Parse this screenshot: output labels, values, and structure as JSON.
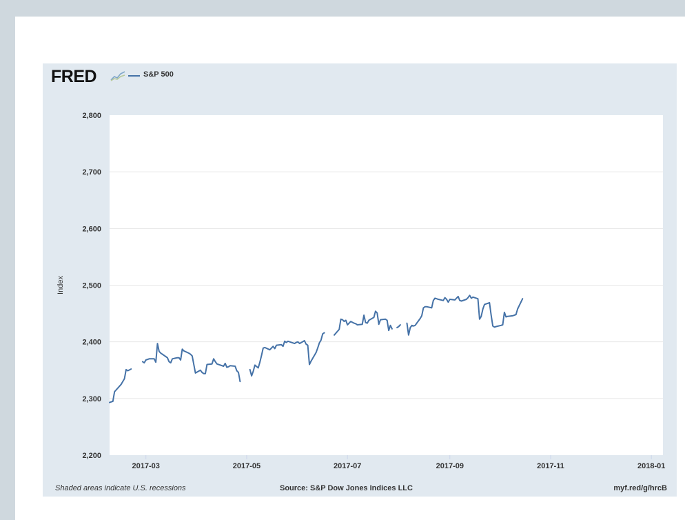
{
  "brand": {
    "logo_text": "FRED",
    "logo_icon": "fred-graph-icon"
  },
  "legend": {
    "label": "S&P 500",
    "color": "#4572a7"
  },
  "footer": {
    "note": "Shaded areas indicate U.S. recessions",
    "source": "Source: S&P Dow Jones Indices LLC",
    "link": "myf.red/g/hrcB"
  },
  "chart_data": {
    "type": "line",
    "title": "",
    "xlabel": "",
    "ylabel": "Index",
    "ylim": [
      2200,
      2800
    ],
    "xlim": [
      "2017-02-07",
      "2018-01-08"
    ],
    "y_ticks": [
      2200,
      2300,
      2400,
      2500,
      2600,
      2700,
      2800
    ],
    "y_tick_labels": [
      "2,200",
      "2,300",
      "2,400",
      "2,500",
      "2,600",
      "2,700",
      "2,800"
    ],
    "x_ticks": [
      "2017-03-01",
      "2017-05-01",
      "2017-07-01",
      "2017-09-01",
      "2017-11-01",
      "2018-01-01"
    ],
    "x_tick_labels": [
      "2017-03",
      "2017-05",
      "2017-07",
      "2017-09",
      "2017-11",
      "2018-01"
    ],
    "grid": true,
    "legend_position": "top-left",
    "series": [
      {
        "name": "S&P 500",
        "color": "#4572a7",
        "segments": [
          [
            [
              "2017-02-07",
              2293
            ],
            [
              "2017-02-09",
              2295
            ],
            [
              "2017-02-10",
              2312
            ],
            [
              "2017-02-14",
              2325
            ],
            [
              "2017-02-16",
              2335
            ],
            [
              "2017-02-17",
              2351
            ],
            [
              "2017-02-18",
              2349
            ],
            [
              "2017-02-20",
              2352
            ]
          ],
          [
            [
              "2017-02-27",
              2365
            ],
            [
              "2017-02-28",
              2363
            ],
            [
              "2017-03-01",
              2368
            ],
            [
              "2017-03-03",
              2370
            ],
            [
              "2017-03-06",
              2370
            ],
            [
              "2017-03-07",
              2364
            ],
            [
              "2017-03-08",
              2397
            ],
            [
              "2017-03-09",
              2383
            ],
            [
              "2017-03-10",
              2380
            ],
            [
              "2017-03-13",
              2374
            ],
            [
              "2017-03-14",
              2372
            ],
            [
              "2017-03-15",
              2365
            ],
            [
              "2017-03-16",
              2363
            ],
            [
              "2017-03-17",
              2370
            ],
            [
              "2017-03-20",
              2372
            ],
            [
              "2017-03-21",
              2372
            ],
            [
              "2017-03-22",
              2368
            ],
            [
              "2017-03-23",
              2387
            ],
            [
              "2017-03-24",
              2384
            ],
            [
              "2017-03-27",
              2380
            ],
            [
              "2017-03-28",
              2378
            ],
            [
              "2017-03-29",
              2375
            ],
            [
              "2017-03-31",
              2345
            ],
            [
              "2017-04-03",
              2350
            ],
            [
              "2017-04-04",
              2346
            ],
            [
              "2017-04-05",
              2344
            ],
            [
              "2017-04-06",
              2344
            ],
            [
              "2017-04-07",
              2360
            ],
            [
              "2017-04-10",
              2361
            ],
            [
              "2017-04-11",
              2370
            ],
            [
              "2017-04-12",
              2365
            ],
            [
              "2017-04-13",
              2361
            ],
            [
              "2017-04-17",
              2357
            ],
            [
              "2017-04-18",
              2362
            ],
            [
              "2017-04-19",
              2355
            ],
            [
              "2017-04-20",
              2356
            ],
            [
              "2017-04-21",
              2358
            ],
            [
              "2017-04-24",
              2357
            ],
            [
              "2017-04-25",
              2349
            ],
            [
              "2017-04-26",
              2346
            ],
            [
              "2017-04-27",
              2330
            ]
          ],
          [
            [
              "2017-05-03",
              2351
            ],
            [
              "2017-05-04",
              2340
            ],
            [
              "2017-05-05",
              2348
            ],
            [
              "2017-05-06",
              2359
            ],
            [
              "2017-05-08",
              2354
            ],
            [
              "2017-05-09",
              2364
            ],
            [
              "2017-05-10",
              2376
            ],
            [
              "2017-05-11",
              2389
            ],
            [
              "2017-05-12",
              2390
            ],
            [
              "2017-05-15",
              2386
            ],
            [
              "2017-05-16",
              2389
            ],
            [
              "2017-05-17",
              2392
            ],
            [
              "2017-05-18",
              2388
            ],
            [
              "2017-05-19",
              2394
            ],
            [
              "2017-05-22",
              2395
            ],
            [
              "2017-05-23",
              2392
            ],
            [
              "2017-05-24",
              2401
            ],
            [
              "2017-05-25",
              2399
            ],
            [
              "2017-05-26",
              2401
            ],
            [
              "2017-05-30",
              2397
            ],
            [
              "2017-05-31",
              2399
            ],
            [
              "2017-06-01",
              2400
            ],
            [
              "2017-06-02",
              2397
            ],
            [
              "2017-06-05",
              2402
            ],
            [
              "2017-06-06",
              2396
            ],
            [
              "2017-06-07",
              2394
            ],
            [
              "2017-06-08",
              2360
            ],
            [
              "2017-06-09",
              2366
            ],
            [
              "2017-06-12",
              2381
            ],
            [
              "2017-06-13",
              2389
            ],
            [
              "2017-06-14",
              2398
            ],
            [
              "2017-06-15",
              2403
            ],
            [
              "2017-06-16",
              2414
            ],
            [
              "2017-06-17",
              2416
            ]
          ],
          [
            [
              "2017-06-23",
              2412
            ],
            [
              "2017-06-26",
              2422
            ],
            [
              "2017-06-27",
              2440
            ],
            [
              "2017-06-28",
              2439
            ],
            [
              "2017-06-29",
              2436
            ],
            [
              "2017-06-30",
              2438
            ],
            [
              "2017-07-01",
              2430
            ],
            [
              "2017-07-03",
              2436
            ],
            [
              "2017-07-05",
              2433
            ],
            [
              "2017-07-06",
              2432
            ],
            [
              "2017-07-07",
              2430
            ],
            [
              "2017-07-10",
              2431
            ],
            [
              "2017-07-11",
              2447
            ],
            [
              "2017-07-12",
              2434
            ],
            [
              "2017-07-13",
              2433
            ],
            [
              "2017-07-14",
              2438
            ],
            [
              "2017-07-17",
              2443
            ],
            [
              "2017-07-18",
              2454
            ],
            [
              "2017-07-19",
              2451
            ],
            [
              "2017-07-20",
              2431
            ],
            [
              "2017-07-21",
              2439
            ],
            [
              "2017-07-24",
              2440
            ],
            [
              "2017-07-25",
              2438
            ],
            [
              "2017-07-26",
              2420
            ],
            [
              "2017-07-27",
              2429
            ],
            [
              "2017-07-28",
              2423
            ]
          ],
          [
            [
              "2017-07-31",
              2425
            ],
            [
              "2017-08-01",
              2427
            ],
            [
              "2017-08-02",
              2430
            ]
          ],
          [
            [
              "2017-08-06",
              2433
            ],
            [
              "2017-08-07",
              2412
            ],
            [
              "2017-08-08",
              2425
            ],
            [
              "2017-08-09",
              2429
            ],
            [
              "2017-08-10",
              2428
            ],
            [
              "2017-08-11",
              2429
            ],
            [
              "2017-08-14",
              2441
            ],
            [
              "2017-08-15",
              2446
            ],
            [
              "2017-08-16",
              2460
            ],
            [
              "2017-08-17",
              2462
            ],
            [
              "2017-08-18",
              2462
            ],
            [
              "2017-08-21",
              2460
            ],
            [
              "2017-08-22",
              2473
            ],
            [
              "2017-08-23",
              2477
            ],
            [
              "2017-08-24",
              2476
            ],
            [
              "2017-08-25",
              2475
            ],
            [
              "2017-08-28",
              2473
            ],
            [
              "2017-08-29",
              2478
            ],
            [
              "2017-08-30",
              2475
            ],
            [
              "2017-08-31",
              2470
            ],
            [
              "2017-09-01",
              2475
            ],
            [
              "2017-09-04",
              2474
            ],
            [
              "2017-09-05",
              2477
            ],
            [
              "2017-09-06",
              2480
            ],
            [
              "2017-09-07",
              2473
            ],
            [
              "2017-09-08",
              2472
            ],
            [
              "2017-09-11",
              2475
            ],
            [
              "2017-09-12",
              2478
            ],
            [
              "2017-09-13",
              2482
            ],
            [
              "2017-09-14",
              2477
            ],
            [
              "2017-09-15",
              2479
            ],
            [
              "2017-09-18",
              2476
            ],
            [
              "2017-09-19",
              2440
            ],
            [
              "2017-09-20",
              2445
            ],
            [
              "2017-09-21",
              2458
            ],
            [
              "2017-09-22",
              2466
            ],
            [
              "2017-09-25",
              2469
            ],
            [
              "2017-09-26",
              2447
            ],
            [
              "2017-09-27",
              2428
            ],
            [
              "2017-09-28",
              2426
            ],
            [
              "2017-09-29",
              2427
            ],
            [
              "2017-10-02",
              2429
            ],
            [
              "2017-10-03",
              2430
            ],
            [
              "2017-10-04",
              2452
            ],
            [
              "2017-10-05",
              2444
            ],
            [
              "2017-10-06",
              2445
            ],
            [
              "2017-10-09",
              2446
            ],
            [
              "2017-10-10",
              2447
            ],
            [
              "2017-10-11",
              2448
            ],
            [
              "2017-10-12",
              2458
            ],
            [
              "2017-10-13",
              2464
            ],
            [
              "2017-10-15",
              2476
            ]
          ]
        ]
      }
    ]
  }
}
